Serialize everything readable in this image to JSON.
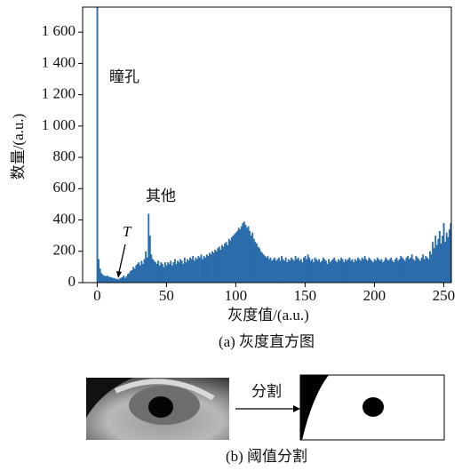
{
  "chart_data": {
    "type": "histogram",
    "x_label": "灰度值/(a.u.)",
    "y_label": "数量/(a.u.)",
    "caption": "(a) 灰度直方图",
    "color": "#2b6cab",
    "xlim": [
      -10.5,
      255.5
    ],
    "xticks": [
      0,
      50,
      100,
      150,
      200,
      250
    ],
    "ylim": [
      0,
      1760
    ],
    "yticks": [
      0,
      200,
      400,
      600,
      800,
      {
        "value": 1000,
        "label": "1 000"
      },
      {
        "value": 1200,
        "label": "1 200"
      },
      {
        "value": 1400,
        "label": "1 400"
      },
      {
        "value": 1600,
        "label": "1 600"
      }
    ],
    "annotations": [
      {
        "text": "瞳孔"
      },
      {
        "text": "其他"
      },
      {
        "text": "T"
      }
    ],
    "x": [
      0,
      1,
      2,
      3,
      4,
      5,
      6,
      7,
      8,
      9,
      10,
      11,
      12,
      13,
      14,
      15,
      16,
      17,
      18,
      19,
      20,
      21,
      22,
      23,
      24,
      25,
      26,
      27,
      28,
      29,
      30,
      31,
      32,
      33,
      34,
      35,
      36,
      37,
      38,
      39,
      40,
      41,
      42,
      43,
      44,
      45,
      46,
      47,
      48,
      49,
      50,
      51,
      52,
      53,
      54,
      55,
      56,
      57,
      58,
      59,
      60,
      61,
      62,
      63,
      64,
      65,
      66,
      67,
      68,
      69,
      70,
      71,
      72,
      73,
      74,
      75,
      76,
      77,
      78,
      79,
      80,
      81,
      82,
      83,
      84,
      85,
      86,
      87,
      88,
      89,
      90,
      91,
      92,
      93,
      94,
      95,
      96,
      97,
      98,
      99,
      100,
      101,
      102,
      103,
      104,
      105,
      106,
      107,
      108,
      109,
      110,
      111,
      112,
      113,
      114,
      115,
      116,
      117,
      118,
      119,
      120,
      121,
      122,
      123,
      124,
      125,
      126,
      127,
      128,
      129,
      130,
      131,
      132,
      133,
      134,
      135,
      136,
      137,
      138,
      139,
      140,
      141,
      142,
      143,
      144,
      145,
      146,
      147,
      148,
      149,
      150,
      151,
      152,
      153,
      154,
      155,
      156,
      157,
      158,
      159,
      160,
      161,
      162,
      163,
      164,
      165,
      166,
      167,
      168,
      169,
      170,
      171,
      172,
      173,
      174,
      175,
      176,
      177,
      178,
      179,
      180,
      181,
      182,
      183,
      184,
      185,
      186,
      187,
      188,
      189,
      190,
      191,
      192,
      193,
      194,
      195,
      196,
      197,
      198,
      199,
      200,
      201,
      202,
      203,
      204,
      205,
      206,
      207,
      208,
      209,
      210,
      211,
      212,
      213,
      214,
      215,
      216,
      217,
      218,
      219,
      220,
      221,
      222,
      223,
      224,
      225,
      226,
      227,
      228,
      229,
      230,
      231,
      232,
      233,
      234,
      235,
      236,
      237,
      238,
      239,
      240,
      241,
      242,
      243,
      244,
      245,
      246,
      247,
      248,
      249,
      250,
      251,
      252,
      253,
      254,
      255
    ],
    "values": [
      1760,
      150,
      90,
      60,
      50,
      45,
      40,
      45,
      40,
      35,
      35,
      30,
      30,
      25,
      25,
      20,
      25,
      30,
      35,
      45,
      30,
      40,
      55,
      60,
      75,
      80,
      100,
      90,
      110,
      120,
      130,
      110,
      140,
      120,
      150,
      200,
      160,
      440,
      300,
      180,
      150,
      140,
      130,
      120,
      140,
      110,
      130,
      120,
      100,
      130,
      110,
      130,
      120,
      140,
      110,
      130,
      150,
      120,
      140,
      130,
      150,
      140,
      120,
      160,
      130,
      150,
      140,
      160,
      150,
      170,
      140,
      160,
      150,
      170,
      160,
      180,
      150,
      170,
      160,
      180,
      170,
      190,
      180,
      200,
      190,
      210,
      200,
      220,
      230,
      210,
      240,
      230,
      250,
      260,
      240,
      280,
      270,
      290,
      300,
      310,
      320,
      330,
      350,
      340,
      360,
      380,
      390,
      370,
      350,
      360,
      330,
      300,
      320,
      280,
      260,
      250,
      230,
      220,
      200,
      190,
      180,
      170,
      160,
      170,
      150,
      160,
      140,
      150,
      160,
      140,
      150,
      160,
      140,
      170,
      150,
      140,
      160,
      130,
      150,
      140,
      160,
      150,
      140,
      170,
      150,
      160,
      140,
      150,
      130,
      160,
      170,
      150,
      180,
      160,
      140,
      150,
      130,
      160,
      150,
      140,
      150,
      130,
      140,
      160,
      150,
      140,
      120,
      150,
      130,
      140,
      150,
      160,
      140,
      130,
      150,
      140,
      160,
      150,
      130,
      150,
      140,
      150,
      160,
      140,
      150,
      130,
      150,
      140,
      160,
      150,
      140,
      160,
      150,
      170,
      150,
      140,
      160,
      150,
      140,
      130,
      150,
      140,
      160,
      150,
      140,
      150,
      130,
      140,
      160,
      150,
      140,
      150,
      160,
      140,
      130,
      150,
      160,
      140,
      150,
      170,
      160,
      150,
      140,
      160,
      170,
      150,
      160,
      180,
      150,
      140,
      170,
      160,
      150,
      140,
      160,
      180,
      150,
      170,
      160,
      150,
      200,
      180,
      260,
      220,
      300,
      240,
      280,
      330,
      250,
      300,
      380,
      260,
      320,
      290,
      340,
      380
    ]
  },
  "panel_b": {
    "step_label": "分割",
    "caption": "(b) 阈值分割"
  }
}
